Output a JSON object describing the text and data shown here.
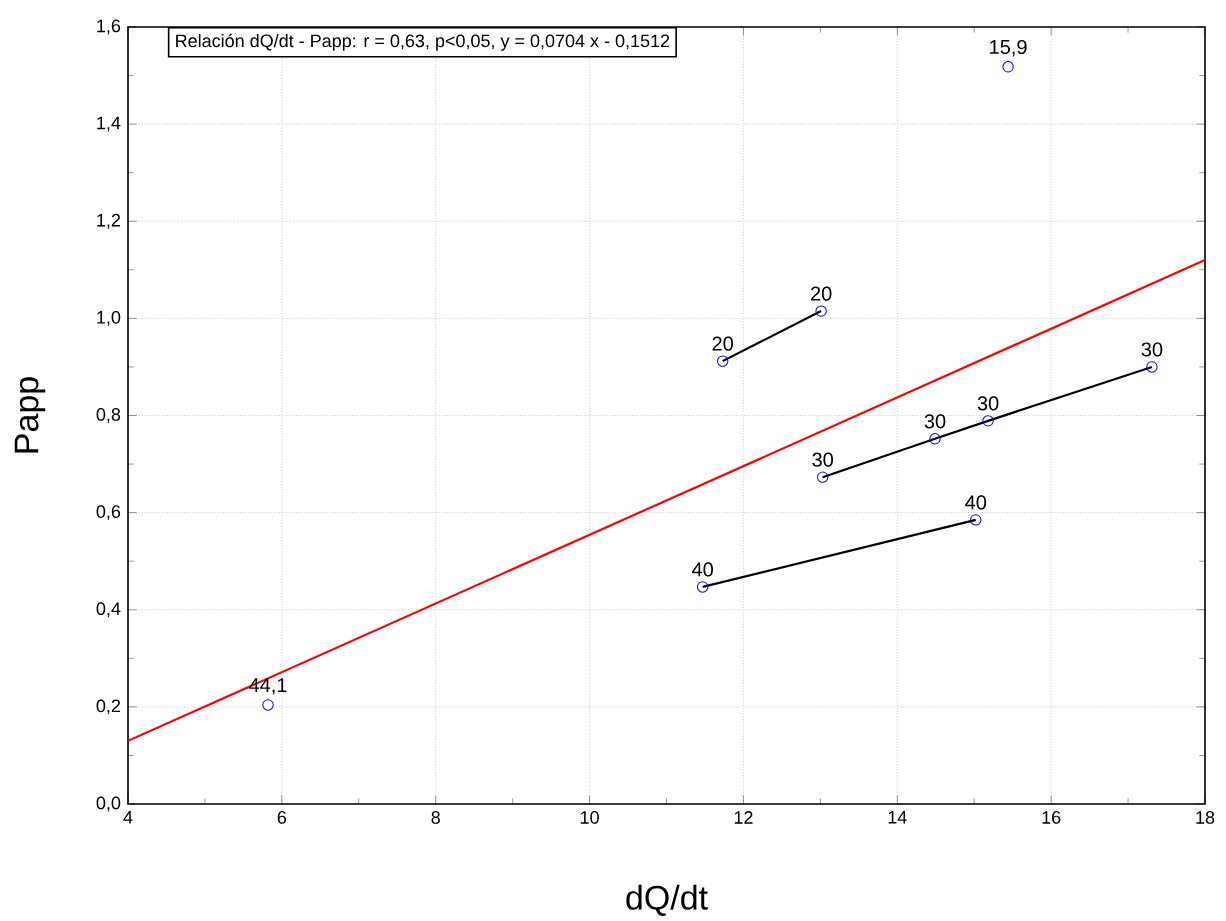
{
  "chart_data": {
    "type": "scatter",
    "xlabel": "dQ/dt",
    "ylabel": "Papp",
    "annotations": [
      "Relación dQ/dt - Papp:  r = 0,63, p<0,05, y = 0,0704 x - 0,1512",
      {
        "text": "44,1",
        "x": 5.82,
        "y": 0.204
      },
      {
        "text": "40",
        "x": 11.47,
        "y": 0.447
      },
      {
        "text": "40",
        "x": 15.02,
        "y": 0.585
      },
      {
        "text": "20",
        "x": 11.73,
        "y": 0.912
      },
      {
        "text": "20",
        "x": 13.01,
        "y": 1.015
      },
      {
        "text": "30",
        "x": 13.03,
        "y": 0.673
      },
      {
        "text": "30",
        "x": 14.49,
        "y": 0.752
      },
      {
        "text": "30",
        "x": 15.18,
        "y": 0.789
      },
      {
        "text": "30",
        "x": 17.31,
        "y": 0.9
      },
      {
        "text": "15,9",
        "x": 15.44,
        "y": 1.518
      }
    ],
    "xlim": [
      4,
      18
    ],
    "ylim": [
      0,
      1.6
    ],
    "xticks": [
      4,
      6,
      8,
      10,
      12,
      14,
      16,
      18
    ],
    "yticks": [
      {
        "value": 0,
        "label": "0,0"
      },
      {
        "value": 0.2,
        "label": "0,2"
      },
      {
        "value": 0.4,
        "label": "0,4"
      },
      {
        "value": 0.6,
        "label": "0,6"
      },
      {
        "value": 0.8,
        "label": "0,8"
      },
      {
        "value": 1.0,
        "label": "1,0"
      },
      {
        "value": 1.2,
        "label": "1,2"
      },
      {
        "value": 1.4,
        "label": "1,4"
      },
      {
        "value": 1.6,
        "label": "1,6"
      }
    ],
    "grid": true,
    "marker": "circle",
    "series": [
      {
        "type": "line",
        "color": "#000000",
        "marker": "none",
        "x": [
          11.73,
          13.01
        ],
        "values": [
          0.912,
          1.015
        ]
      },
      {
        "type": "line",
        "color": "#000000",
        "marker": "none",
        "x": [
          13.03,
          14.49,
          15.18,
          17.31
        ],
        "values": [
          0.673,
          0.752,
          0.789,
          0.9
        ]
      },
      {
        "type": "line",
        "color": "#000000",
        "marker": "none",
        "x": [
          11.47,
          15.02
        ],
        "values": [
          0.447,
          0.585
        ]
      },
      {
        "type": "line",
        "color": "#ff0000",
        "marker": "none",
        "x": [
          4,
          18
        ],
        "values": [
          0.13,
          1.12
        ]
      },
      {
        "color": "#0000ff",
        "x": [
          5.82,
          11.47,
          15.02,
          11.73,
          13.01,
          13.03,
          14.49,
          15.18,
          17.31,
          15.44
        ],
        "values": [
          0.204,
          0.447,
          0.585,
          0.912,
          1.015,
          0.673,
          0.752,
          0.789,
          0.9,
          1.518
        ]
      }
    ]
  }
}
